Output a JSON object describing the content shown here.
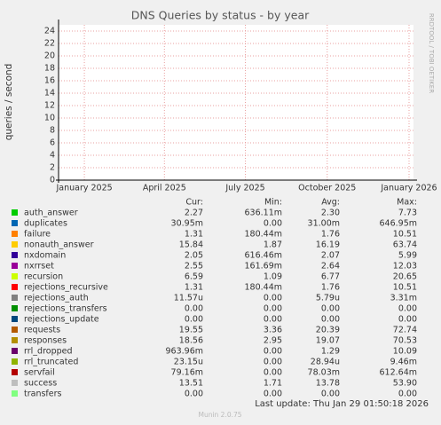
{
  "chart_data": {
    "type": "line",
    "title": "DNS Queries by status - by year",
    "y_label": "queries / second",
    "side_label": "RRDTOOL / TOBI OETIKER",
    "xlim": [
      "2024-12-03",
      "2026-01-06"
    ],
    "xticks": [
      {
        "value": "2025-01-01",
        "label": "January 2025"
      },
      {
        "value": "2025-04-01",
        "label": "April 2025"
      },
      {
        "value": "2025-07-01",
        "label": "July 2025"
      },
      {
        "value": "2025-10-01",
        "label": "October 2025"
      },
      {
        "value": "2026-01-01",
        "label": "January 2026"
      }
    ],
    "ylim": [
      0,
      25
    ],
    "yticks": [
      0,
      2,
      4,
      6,
      8,
      10,
      12,
      14,
      16,
      18,
      20,
      22,
      24
    ],
    "grid": true,
    "columns": [
      "Cur:",
      "Min:",
      "Avg:",
      "Max:"
    ],
    "series": [
      {
        "name": "auth_answer",
        "color": "#00cc00",
        "stats": [
          "2.27",
          "636.11m",
          "2.30",
          "7.73"
        ]
      },
      {
        "name": "duplicates",
        "color": "#0066b3",
        "stats": [
          "30.95m",
          "0.00",
          "31.00m",
          "646.95m"
        ]
      },
      {
        "name": "failure",
        "color": "#ff8000",
        "stats": [
          "1.31",
          "180.44m",
          "1.76",
          "10.51"
        ]
      },
      {
        "name": "nonauth_answer",
        "color": "#ffcc00",
        "stats": [
          "15.84",
          "1.87",
          "16.19",
          "63.74"
        ]
      },
      {
        "name": "nxdomain",
        "color": "#330099",
        "stats": [
          "2.05",
          "616.46m",
          "2.07",
          "5.99"
        ]
      },
      {
        "name": "nxrrset",
        "color": "#990099",
        "stats": [
          "2.55",
          "161.69m",
          "2.64",
          "12.03"
        ]
      },
      {
        "name": "recursion",
        "color": "#ccff00",
        "stats": [
          "6.59",
          "1.09",
          "6.77",
          "20.65"
        ]
      },
      {
        "name": "rejections_recursive",
        "color": "#ff0000",
        "stats": [
          "1.31",
          "180.44m",
          "1.76",
          "10.51"
        ]
      },
      {
        "name": "rejections_auth",
        "color": "#808080",
        "stats": [
          "11.57u",
          "0.00",
          "5.79u",
          "3.31m"
        ]
      },
      {
        "name": "rejections_transfers",
        "color": "#008f00",
        "stats": [
          "0.00",
          "0.00",
          "0.00",
          "0.00"
        ]
      },
      {
        "name": "rejections_update",
        "color": "#00487d",
        "stats": [
          "0.00",
          "0.00",
          "0.00",
          "0.00"
        ]
      },
      {
        "name": "requests",
        "color": "#b35a00",
        "stats": [
          "19.55",
          "3.36",
          "20.39",
          "72.74"
        ]
      },
      {
        "name": "responses",
        "color": "#b38f00",
        "stats": [
          "18.56",
          "2.95",
          "19.07",
          "70.53"
        ]
      },
      {
        "name": "rrl_dropped",
        "color": "#6b006b",
        "stats": [
          "963.96m",
          "0.00",
          "1.29",
          "10.09"
        ]
      },
      {
        "name": "rrl_truncated",
        "color": "#8fb300",
        "stats": [
          "23.15u",
          "0.00",
          "28.94u",
          "9.46m"
        ]
      },
      {
        "name": "servfail",
        "color": "#b30000",
        "stats": [
          "79.16m",
          "0.00",
          "78.03m",
          "612.64m"
        ]
      },
      {
        "name": "success",
        "color": "#bebebe",
        "stats": [
          "13.51",
          "1.71",
          "13.78",
          "53.90"
        ]
      },
      {
        "name": "transfers",
        "color": "#80ff80",
        "stats": [
          "0.00",
          "0.00",
          "0.00",
          "0.00"
        ]
      }
    ],
    "last_update": "Last update: Thu Jan 29 01:50:18 2026",
    "footer": "Munin 2.0.75"
  }
}
